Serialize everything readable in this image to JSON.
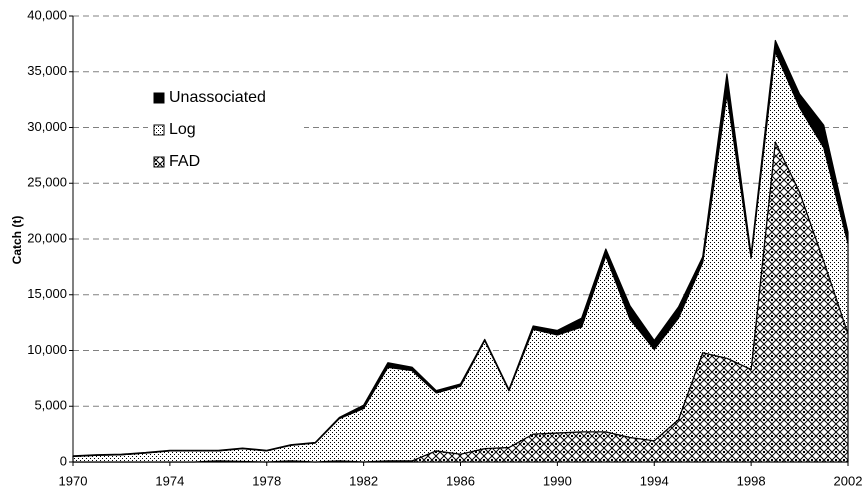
{
  "chart_data": {
    "type": "stacked_area",
    "y_label": "Catch (t)",
    "x": [
      1970,
      1971,
      1972,
      1973,
      1974,
      1975,
      1976,
      1977,
      1978,
      1979,
      1980,
      1981,
      1982,
      1983,
      1984,
      1985,
      1986,
      1987,
      1988,
      1989,
      1990,
      1991,
      1992,
      1993,
      1994,
      1995,
      1996,
      1997,
      1998,
      1999,
      2000,
      2001,
      2002
    ],
    "series": [
      {
        "name": "FAD",
        "color": "#000000",
        "pattern": "crosshatch",
        "values": [
          0,
          0,
          0,
          0,
          0,
          0,
          100,
          50,
          0,
          100,
          0,
          100,
          0,
          100,
          100,
          1000,
          700,
          1200,
          1300,
          2500,
          2600,
          2700,
          2700,
          2200,
          1900,
          3800,
          9800,
          9300,
          8300,
          28700,
          24200,
          18000,
          11500
        ]
      },
      {
        "name": "Log",
        "color": "#000000",
        "pattern": "dots",
        "values": [
          500,
          600,
          650,
          800,
          1000,
          1000,
          900,
          1150,
          1000,
          1400,
          1700,
          3800,
          4800,
          8400,
          8100,
          5200,
          6100,
          9700,
          5100,
          9400,
          8800,
          9400,
          15800,
          10600,
          8200,
          9100,
          8100,
          23700,
          10000,
          8100,
          7600,
          10200,
          8100
        ]
      },
      {
        "name": "Unassociated",
        "color": "#000000",
        "pattern": "solid",
        "values": [
          50,
          50,
          50,
          50,
          50,
          50,
          50,
          50,
          50,
          50,
          50,
          100,
          300,
          400,
          300,
          200,
          200,
          100,
          100,
          300,
          400,
          800,
          600,
          1200,
          800,
          1000,
          500,
          1800,
          300,
          1000,
          1200,
          2000,
          1000
        ]
      }
    ],
    "xlim": [
      1970,
      2002
    ],
    "xticks": [
      1970,
      1974,
      1978,
      1982,
      1986,
      1990,
      1994,
      1998,
      2002
    ],
    "ylim": [
      0,
      40000
    ],
    "yticks": [
      0,
      {
        "value": 5000,
        "label": "5,000"
      },
      {
        "value": 10000,
        "label": "10,000"
      },
      {
        "value": 15000,
        "label": "15,000"
      },
      {
        "value": 20000,
        "label": "20,000"
      },
      {
        "value": 25000,
        "label": "25,000"
      },
      {
        "value": 30000,
        "label": "30,000"
      },
      {
        "value": 35000,
        "label": "35,000"
      },
      {
        "value": 40000,
        "label": "40,000"
      }
    ],
    "grid": true,
    "legend": "top-left"
  }
}
